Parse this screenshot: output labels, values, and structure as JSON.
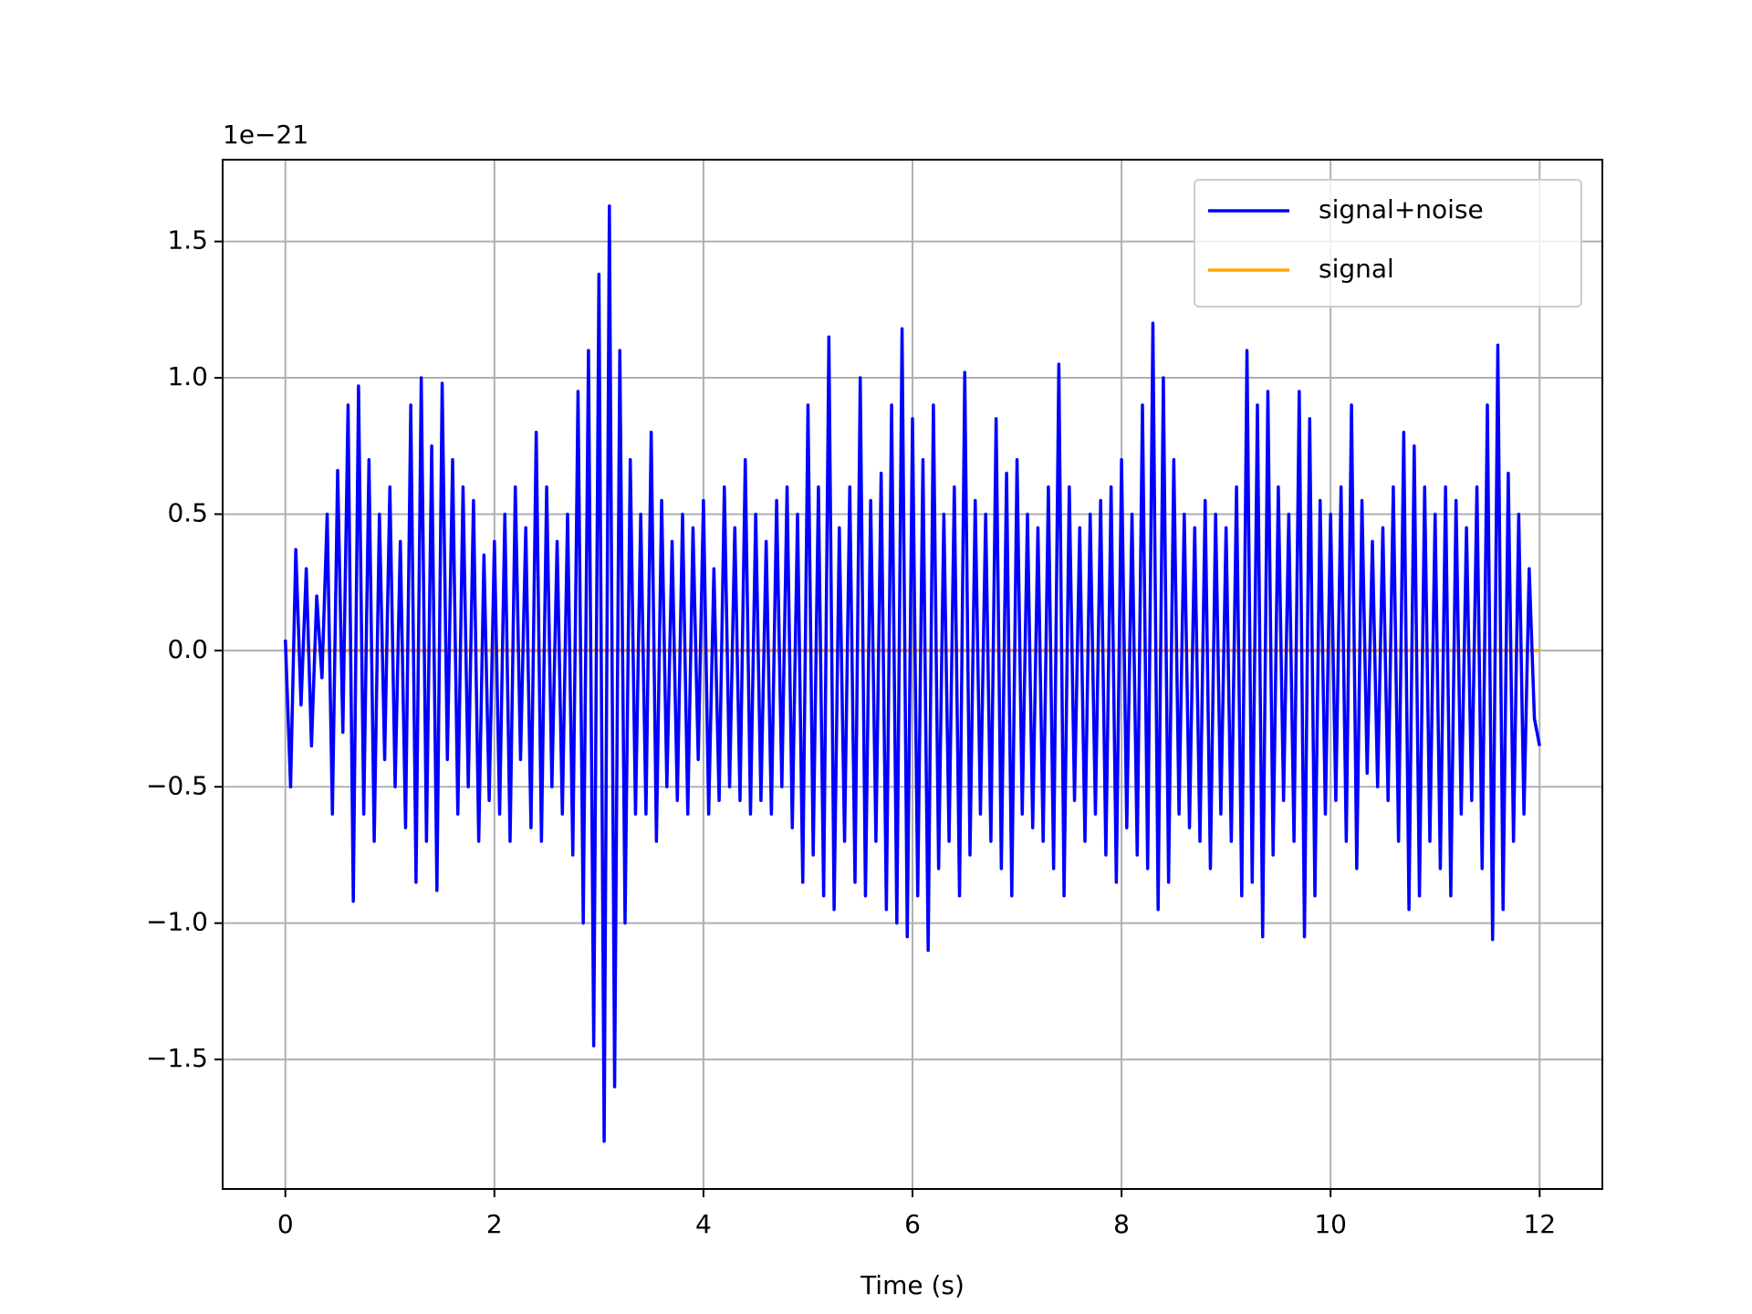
{
  "chart_data": {
    "type": "line",
    "x_label": "Time (s)",
    "y_offset_label": "1e−21",
    "series": [
      {
        "name": "signal+noise",
        "color": "#0000ff",
        "x": [
          0,
          0.05,
          0.1,
          0.15,
          0.2,
          0.25,
          0.3,
          0.35,
          0.4,
          0.45,
          0.5,
          0.55,
          0.6,
          0.65,
          0.7,
          0.75,
          0.8,
          0.85,
          0.9,
          0.95,
          1,
          1.05,
          1.1,
          1.15,
          1.2,
          1.25,
          1.3,
          1.35,
          1.4,
          1.45,
          1.5,
          1.55,
          1.6,
          1.65,
          1.7,
          1.75,
          1.8,
          1.85,
          1.9,
          1.95,
          2,
          2.05,
          2.1,
          2.15,
          2.2,
          2.25,
          2.3,
          2.35,
          2.4,
          2.45,
          2.5,
          2.55,
          2.6,
          2.65,
          2.7,
          2.75,
          2.8,
          2.85,
          2.9,
          2.95,
          3,
          3.05,
          3.1,
          3.15,
          3.2,
          3.25,
          3.3,
          3.35,
          3.4,
          3.45,
          3.5,
          3.55,
          3.6,
          3.65,
          3.7,
          3.75,
          3.8,
          3.85,
          3.9,
          3.95,
          4,
          4.05,
          4.1,
          4.15,
          4.2,
          4.25,
          4.3,
          4.35,
          4.4,
          4.45,
          4.5,
          4.55,
          4.6,
          4.65,
          4.7,
          4.75,
          4.8,
          4.85,
          4.9,
          4.95,
          5,
          5.05,
          5.1,
          5.15,
          5.2,
          5.25,
          5.3,
          5.35,
          5.4,
          5.45,
          5.5,
          5.55,
          5.6,
          5.65,
          5.7,
          5.75,
          5.8,
          5.85,
          5.9,
          5.95,
          6,
          6.05,
          6.1,
          6.15,
          6.2,
          6.25,
          6.3,
          6.35,
          6.4,
          6.45,
          6.5,
          6.55,
          6.6,
          6.65,
          6.7,
          6.75,
          6.8,
          6.85,
          6.9,
          6.95,
          7,
          7.05,
          7.1,
          7.15,
          7.2,
          7.25,
          7.3,
          7.35,
          7.4,
          7.45,
          7.5,
          7.55,
          7.6,
          7.65,
          7.7,
          7.75,
          7.8,
          7.85,
          7.9,
          7.95,
          8,
          8.05,
          8.1,
          8.15,
          8.2,
          8.25,
          8.3,
          8.35,
          8.4,
          8.45,
          8.5,
          8.55,
          8.6,
          8.65,
          8.7,
          8.75,
          8.8,
          8.85,
          8.9,
          8.95,
          9,
          9.05,
          9.1,
          9.15,
          9.2,
          9.25,
          9.3,
          9.35,
          9.4,
          9.45,
          9.5,
          9.55,
          9.6,
          9.65,
          9.7,
          9.75,
          9.8,
          9.85,
          9.9,
          9.95,
          10,
          10.05,
          10.1,
          10.15,
          10.2,
          10.25,
          10.3,
          10.35,
          10.4,
          10.45,
          10.5,
          10.55,
          10.6,
          10.65,
          10.7,
          10.75,
          10.8,
          10.85,
          10.9,
          10.95,
          11,
          11.05,
          11.1,
          11.15,
          11.2,
          11.25,
          11.3,
          11.35,
          11.4,
          11.45,
          11.5,
          11.55,
          11.6,
          11.65,
          11.7,
          11.75,
          11.8,
          11.85,
          11.9,
          11.95,
          12
        ],
        "values": [
          0.04,
          -0.5,
          0.37,
          -0.2,
          0.3,
          -0.35,
          0.2,
          -0.1,
          0.5,
          -0.6,
          0.66,
          -0.3,
          0.9,
          -0.92,
          0.97,
          -0.6,
          0.7,
          -0.7,
          0.5,
          -0.4,
          0.6,
          -0.5,
          0.4,
          -0.65,
          0.9,
          -0.85,
          1.0,
          -0.7,
          0.75,
          -0.88,
          0.98,
          -0.4,
          0.7,
          -0.6,
          0.6,
          -0.5,
          0.55,
          -0.7,
          0.35,
          -0.55,
          0.4,
          -0.6,
          0.5,
          -0.7,
          0.6,
          -0.4,
          0.45,
          -0.65,
          0.8,
          -0.7,
          0.6,
          -0.5,
          0.4,
          -0.6,
          0.5,
          -0.75,
          0.95,
          -1.0,
          1.1,
          -1.45,
          1.38,
          -1.8,
          1.63,
          -1.6,
          1.1,
          -1.0,
          0.7,
          -0.6,
          0.5,
          -0.6,
          0.8,
          -0.7,
          0.55,
          -0.5,
          0.4,
          -0.55,
          0.5,
          -0.6,
          0.45,
          -0.4,
          0.55,
          -0.6,
          0.3,
          -0.55,
          0.6,
          -0.5,
          0.45,
          -0.55,
          0.7,
          -0.6,
          0.5,
          -0.55,
          0.4,
          -0.6,
          0.55,
          -0.5,
          0.6,
          -0.65,
          0.5,
          -0.85,
          0.9,
          -0.75,
          0.6,
          -0.9,
          1.15,
          -0.95,
          0.45,
          -0.7,
          0.6,
          -0.85,
          1.0,
          -0.9,
          0.55,
          -0.7,
          0.65,
          -0.95,
          0.9,
          -1.0,
          1.18,
          -1.05,
          0.85,
          -0.9,
          0.7,
          -1.1,
          0.9,
          -0.8,
          0.5,
          -0.7,
          0.6,
          -0.9,
          1.02,
          -0.75,
          0.55,
          -0.6,
          0.5,
          -0.7,
          0.85,
          -0.8,
          0.65,
          -0.9,
          0.7,
          -0.6,
          0.5,
          -0.65,
          0.45,
          -0.7,
          0.6,
          -0.8,
          1.05,
          -0.9,
          0.6,
          -0.55,
          0.45,
          -0.7,
          0.5,
          -0.6,
          0.55,
          -0.75,
          0.6,
          -0.85,
          0.7,
          -0.65,
          0.5,
          -0.75,
          0.9,
          -0.8,
          1.2,
          -0.95,
          1.0,
          -0.85,
          0.7,
          -0.6,
          0.5,
          -0.65,
          0.45,
          -0.7,
          0.55,
          -0.8,
          0.5,
          -0.6,
          0.45,
          -0.7,
          0.6,
          -0.9,
          1.1,
          -0.85,
          0.9,
          -1.05,
          0.95,
          -0.75,
          0.6,
          -0.55,
          0.5,
          -0.7,
          0.95,
          -1.05,
          0.85,
          -0.9,
          0.55,
          -0.6,
          0.5,
          -0.55,
          0.6,
          -0.7,
          0.9,
          -0.8,
          0.55,
          -0.45,
          0.4,
          -0.5,
          0.45,
          -0.55,
          0.6,
          -0.7,
          0.8,
          -0.95,
          0.75,
          -0.9,
          0.6,
          -0.7,
          0.5,
          -0.8,
          0.6,
          -0.9,
          0.55,
          -0.6,
          0.45,
          -0.55,
          0.6,
          -0.8,
          0.9,
          -1.06,
          1.12,
          -0.95,
          0.65,
          -0.7,
          0.5,
          -0.6,
          0.3,
          -0.25,
          -0.35
        ]
      },
      {
        "name": "signal",
        "color": "#ffa500",
        "x": [
          0,
          12
        ],
        "values": [
          0,
          0
        ]
      }
    ],
    "xlim": [
      -0.6,
      12.6
    ],
    "ylim": [
      -1.975,
      1.8
    ],
    "xticks": [
      0,
      2,
      4,
      6,
      8,
      10,
      12
    ],
    "yticks": [
      {
        "value": -1.5,
        "label": "−1.5"
      },
      {
        "value": -1,
        "label": "−1.0"
      },
      {
        "value": -0.5,
        "label": "−0.5"
      },
      {
        "value": 0,
        "label": "0.0"
      },
      0.5,
      {
        "value": 1,
        "label": "1.0"
      },
      1.5
    ],
    "grid": true,
    "legend": "upper right"
  }
}
